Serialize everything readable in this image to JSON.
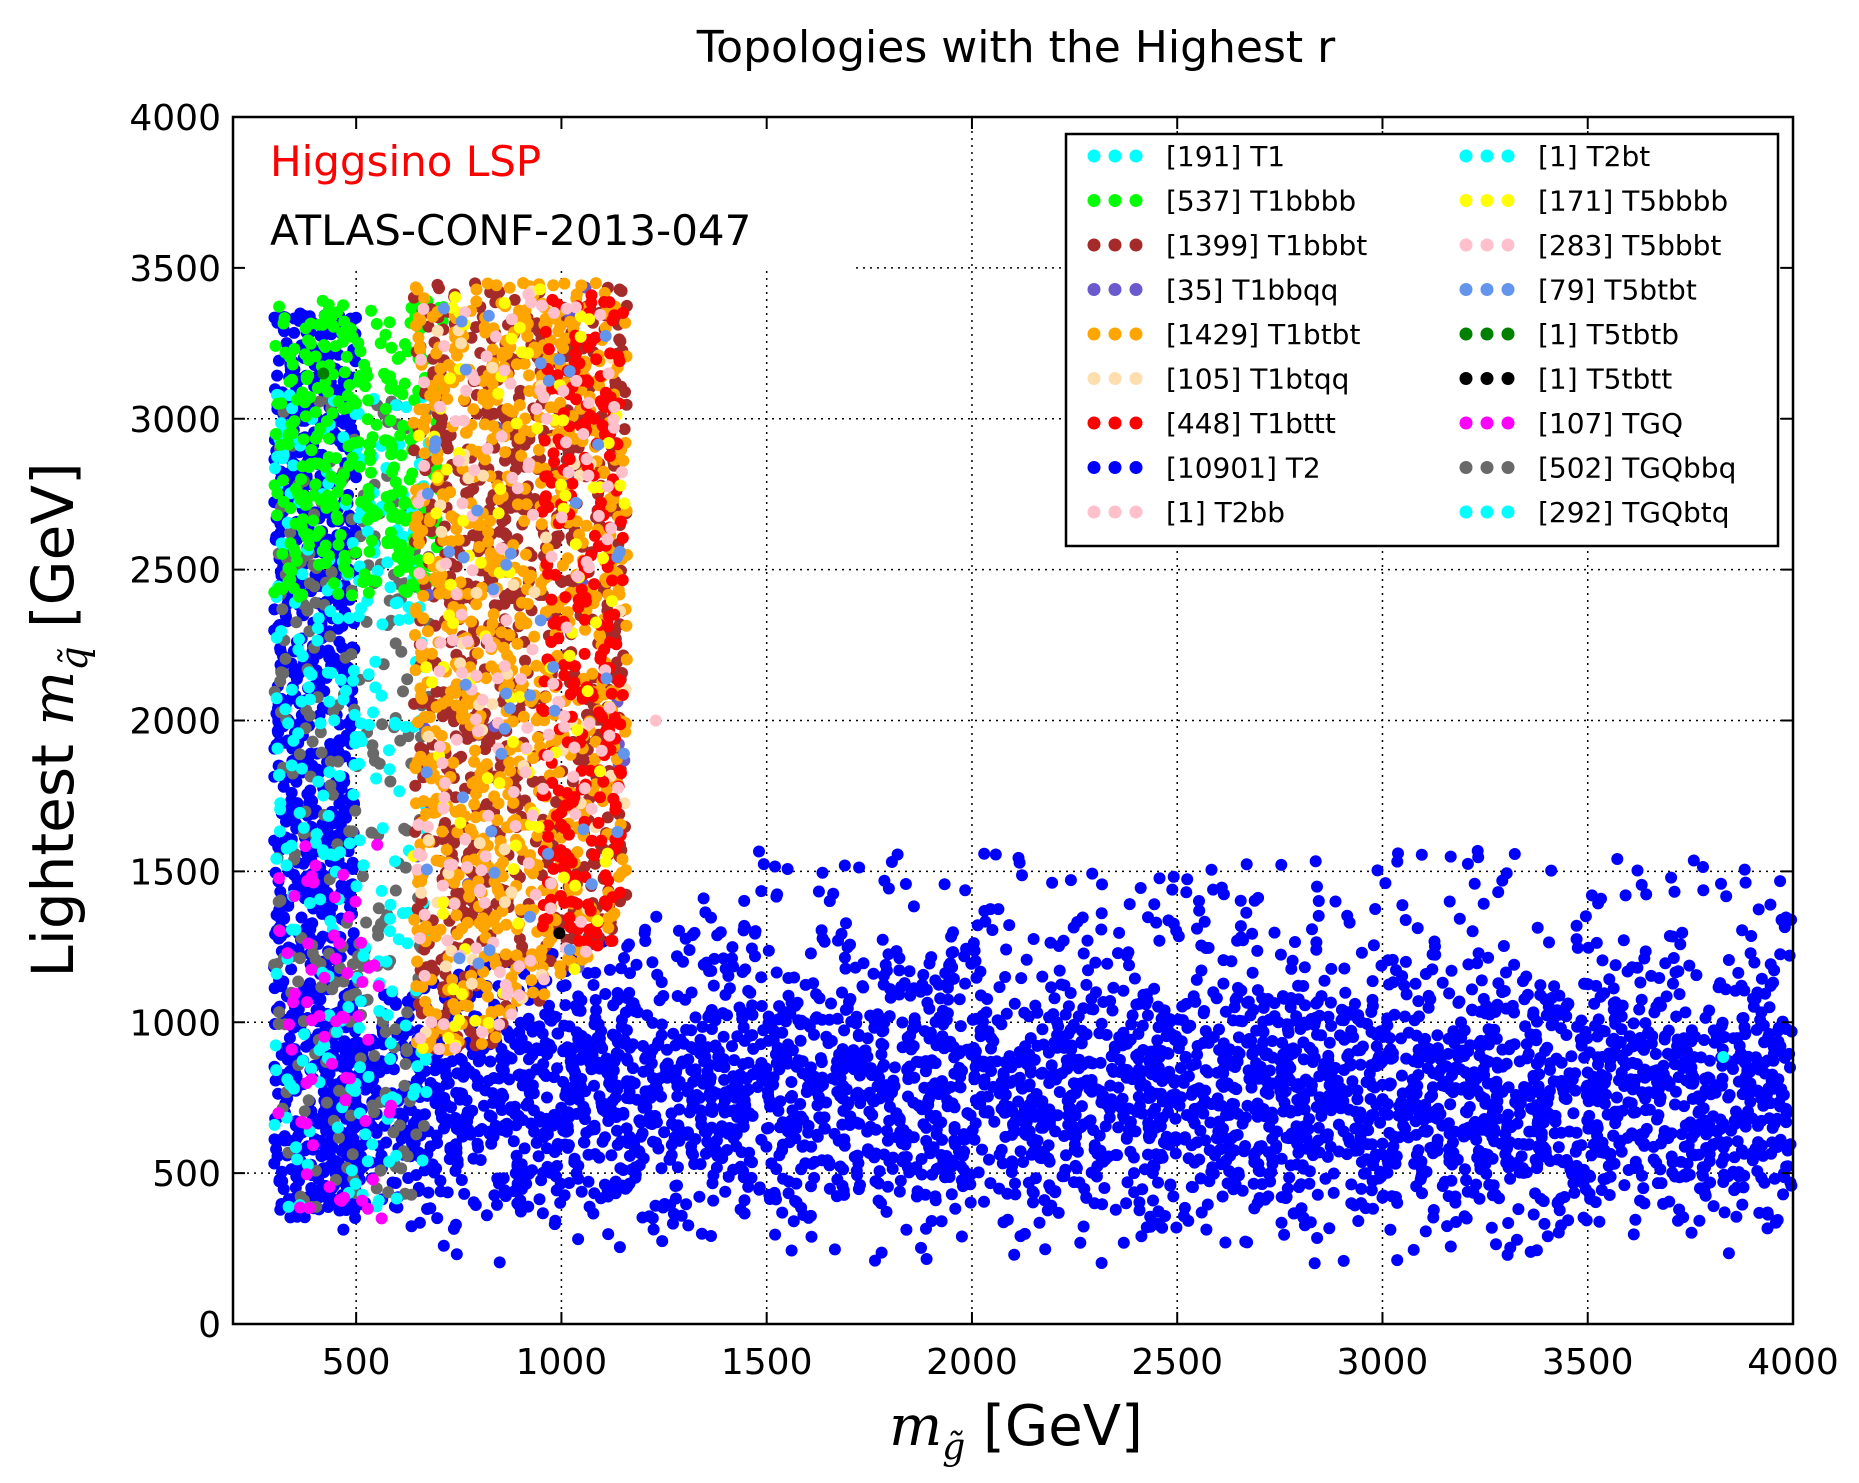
{
  "chart_data": {
    "type": "scatter",
    "title": "Topologies with the Highest r",
    "xlabel": "m_g̃ [GeV]",
    "ylabel": "Lightest m_q̃ [GeV]",
    "xlabel_parts": {
      "m": "m",
      "sub": "g̃",
      "unit": " [GeV]"
    },
    "ylabel_parts": {
      "prefix": "Lightest ",
      "m": "m",
      "sub": "q̃",
      "unit": " [GeV]"
    },
    "xlim": [
      200,
      4000
    ],
    "ylim": [
      0,
      4000
    ],
    "xticks": [
      500,
      1000,
      1500,
      2000,
      2500,
      3000,
      3500,
      4000
    ],
    "yticks": [
      0,
      500,
      1000,
      1500,
      2000,
      2500,
      3000,
      3500,
      4000
    ],
    "grid": true,
    "legend_position": "top-right",
    "annotations": [
      {
        "text": "Higgsino LSP",
        "color": "#ff0000"
      },
      {
        "text": "ATLAS-CONF-2013-047",
        "color": "#000000"
      }
    ],
    "series": [
      {
        "name": "[191] T1",
        "color": "#00ffff",
        "count": 191,
        "region": "left"
      },
      {
        "name": "[537] T1bbbb",
        "color": "#00ff00",
        "count": 537,
        "region": "left-top"
      },
      {
        "name": "[1399] T1bbbt",
        "color": "#a52a2a",
        "count": 1399,
        "region": "mid"
      },
      {
        "name": "[35] T1bbqq",
        "color": "#6a5acd",
        "count": 35,
        "region": "mid"
      },
      {
        "name": "[1429] T1btbt",
        "color": "#ffa500",
        "count": 1429,
        "region": "mid"
      },
      {
        "name": "[105] T1btqq",
        "color": "#ffdead",
        "count": 105,
        "region": "mid"
      },
      {
        "name": "[448] T1bttt",
        "color": "#ff0000",
        "count": 448,
        "region": "right"
      },
      {
        "name": "[10901] T2",
        "color": "#0000ff",
        "count": 10901,
        "region": "band"
      },
      {
        "name": "[1] T2bb",
        "color": "#ffc0cb",
        "count": 1,
        "region": "single",
        "points": [
          [
            1230,
            2000
          ]
        ]
      },
      {
        "name": "[1] T2bt",
        "color": "#00ffff",
        "count": 1,
        "region": "single",
        "points": [
          [
            3830,
            885
          ]
        ]
      },
      {
        "name": "[171] T5bbbb",
        "color": "#ffff00",
        "count": 171,
        "region": "mid"
      },
      {
        "name": "[283] T5bbbt",
        "color": "#ffc0cb",
        "count": 283,
        "region": "mid"
      },
      {
        "name": "[79] T5btbt",
        "color": "#6495ed",
        "count": 79,
        "region": "mid"
      },
      {
        "name": "[1] T5tbtb",
        "color": "#008000",
        "count": 1,
        "region": "single",
        "points": [
          [
            420,
            3150
          ]
        ]
      },
      {
        "name": "[1] T5tbtt",
        "color": "#000000",
        "count": 1,
        "region": "single",
        "points": [
          [
            995,
            1295
          ]
        ]
      },
      {
        "name": "[107] TGQ",
        "color": "#ff00ff",
        "count": 107,
        "region": "low-left"
      },
      {
        "name": "[502] TGQbbq",
        "color": "#696969",
        "count": 502,
        "region": "left"
      },
      {
        "name": "[292] TGQbtq",
        "color": "#00ffff",
        "count": 292,
        "region": "left"
      }
    ]
  }
}
